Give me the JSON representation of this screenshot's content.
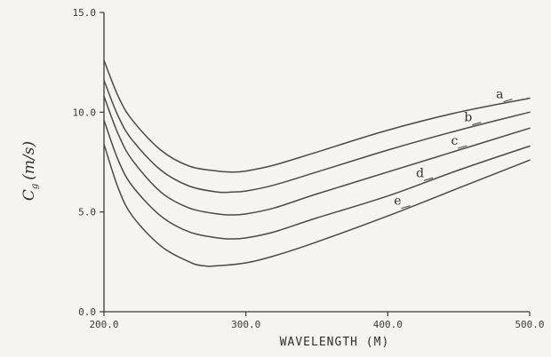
{
  "chart_data": {
    "type": "line",
    "title": "",
    "xlabel": "WAVELENGTH  (M)",
    "ylabel_main": "C",
    "ylabel_sub": "g",
    "ylabel_units": "(m/s)",
    "xlim": [
      200,
      500
    ],
    "ylim": [
      0,
      15
    ],
    "x_ticks": [
      200,
      300,
      400,
      500
    ],
    "x_tick_labels": [
      "200.0",
      "300.0",
      "400.0",
      "500.0"
    ],
    "y_ticks": [
      0,
      5,
      10,
      15
    ],
    "y_tick_labels": [
      "0.0",
      "5.0",
      "10.0",
      "15.0"
    ],
    "grid": false,
    "legend": "none",
    "series": [
      {
        "name": "a",
        "x": [
          200,
          210,
          220,
          240,
          260,
          280,
          290,
          300,
          320,
          350,
          400,
          450,
          500
        ],
        "y": [
          12.6,
          10.8,
          9.6,
          8.1,
          7.3,
          7.05,
          7.0,
          7.05,
          7.35,
          8.0,
          9.1,
          10.0,
          10.7
        ]
      },
      {
        "name": "b",
        "x": [
          200,
          210,
          220,
          240,
          260,
          280,
          290,
          300,
          320,
          350,
          400,
          450,
          500
        ],
        "y": [
          11.6,
          9.8,
          8.6,
          7.1,
          6.3,
          6.0,
          6.0,
          6.05,
          6.35,
          7.0,
          8.1,
          9.1,
          10.0
        ]
      },
      {
        "name": "c",
        "x": [
          200,
          210,
          220,
          240,
          260,
          280,
          290,
          300,
          320,
          350,
          400,
          450,
          500
        ],
        "y": [
          10.8,
          8.9,
          7.6,
          6.0,
          5.2,
          4.9,
          4.85,
          4.9,
          5.2,
          5.9,
          7.0,
          8.1,
          9.2
        ]
      },
      {
        "name": "d",
        "x": [
          200,
          210,
          220,
          240,
          260,
          280,
          290,
          300,
          320,
          350,
          400,
          450,
          500
        ],
        "y": [
          9.6,
          7.6,
          6.3,
          4.8,
          4.0,
          3.7,
          3.65,
          3.7,
          4.0,
          4.7,
          5.8,
          7.1,
          8.3
        ]
      },
      {
        "name": "e",
        "x": [
          200,
          210,
          220,
          240,
          260,
          270,
          280,
          300,
          320,
          350,
          400,
          450,
          500
        ],
        "y": [
          8.4,
          6.2,
          4.8,
          3.3,
          2.5,
          2.3,
          2.3,
          2.45,
          2.8,
          3.5,
          4.8,
          6.2,
          7.6
        ]
      }
    ],
    "series_labels": [
      "a",
      "b",
      "c",
      "d",
      "e"
    ],
    "label_x": [
      484,
      462,
      452,
      428,
      412
    ],
    "colors": {
      "line": "#4a4a4a",
      "axis": "#3a3a3a",
      "background": "#f6f4ee"
    }
  }
}
